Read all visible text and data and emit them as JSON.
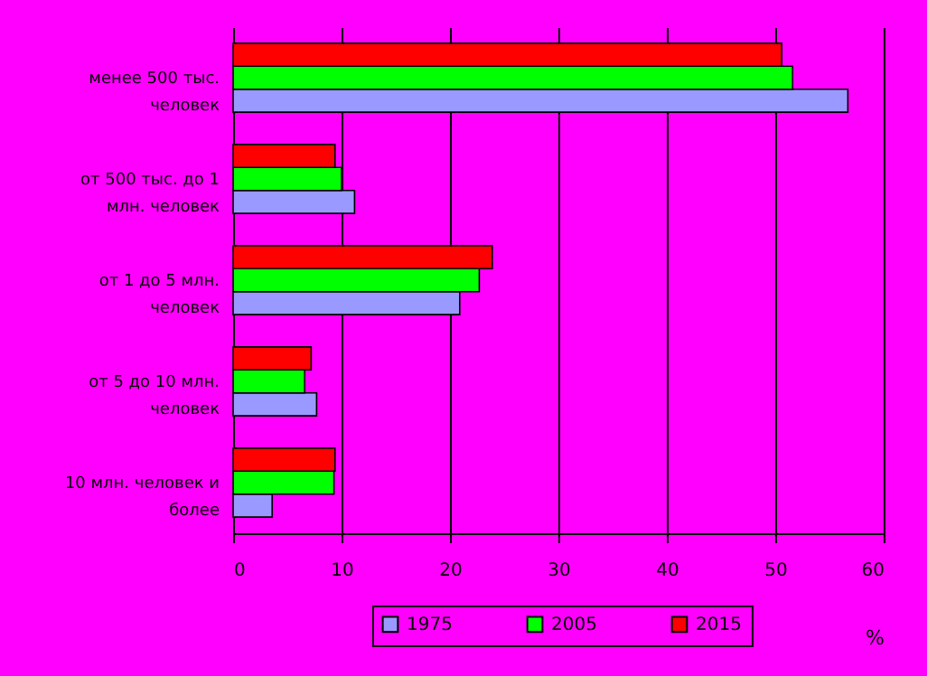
{
  "chart_data": {
    "type": "bar",
    "orientation": "horizontal",
    "xlabel": "%",
    "categories": [
      "менее 500 тыс. человек",
      "от 500 тыс. до 1 млн. человек",
      "от 1 до 5 млн. человек",
      "от 5 до 10 млн. человек",
      "10 млн. человек и более"
    ],
    "series": [
      {
        "name": "1975",
        "color": "#9999ff",
        "values": [
          56.7,
          11.2,
          20.9,
          7.7,
          3.6
        ]
      },
      {
        "name": "2005",
        "color": "#00ff00",
        "values": [
          51.6,
          10,
          22.7,
          6.6,
          9.3
        ]
      },
      {
        "name": "2015",
        "color": "#ff0000",
        "values": [
          50.6,
          9.4,
          23.9,
          7.2,
          9.4
        ]
      }
    ],
    "xlim": [
      0,
      60
    ],
    "xticks": [
      0,
      10,
      20,
      30,
      40,
      50,
      60
    ],
    "grid": "x",
    "legend": "bottom"
  }
}
